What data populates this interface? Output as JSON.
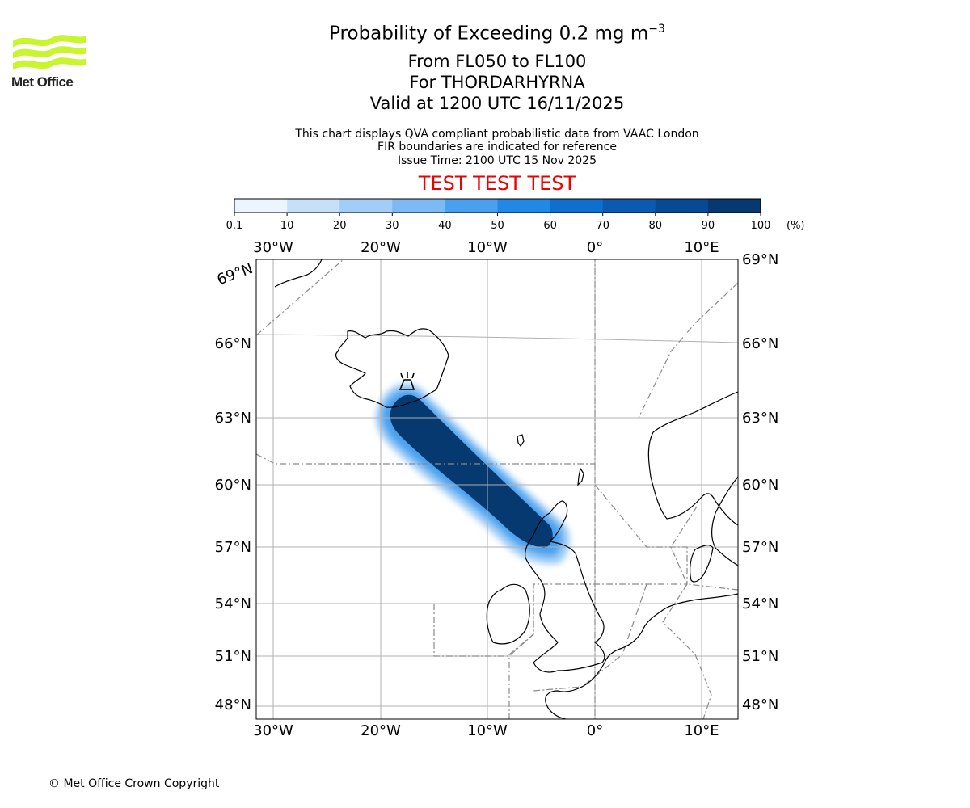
{
  "logo": {
    "text": "Met Office",
    "accent_color": "#c8f52c"
  },
  "header": {
    "title_prefix": "Probability of Exceeding 0.2 mg m",
    "title_exponent": "−3",
    "levels": "From FL050 to FL100",
    "volcano": "For THORDARHYRNA",
    "valid": "Valid at 1200 UTC 16/11/2025",
    "info_line1": "This chart displays QVA compliant probabilistic data from VAAC London",
    "info_line2": "FIR boundaries are indicated for reference",
    "issue_time": "Issue Time: 2100 UTC 15 Nov 2025",
    "test_banner": "TEST TEST TEST"
  },
  "colorbar": {
    "ticks": [
      "0.1",
      "10",
      "20",
      "30",
      "40",
      "50",
      "60",
      "70",
      "80",
      "90",
      "100"
    ],
    "unit": "(%)",
    "colors": [
      "#ecf5fe",
      "#c6e0f9",
      "#a2cdf6",
      "#7dbaf3",
      "#4aa0ee",
      "#2188e6",
      "#0f6fd0",
      "#0a5ab2",
      "#074a93",
      "#05396f"
    ]
  },
  "map": {
    "lon_labels": [
      "30°W",
      "20°W",
      "10°W",
      "0°",
      "10°E"
    ],
    "lat_labels": [
      "69°N",
      "66°N",
      "63°N",
      "60°N",
      "57°N",
      "54°N",
      "51°N",
      "48°N"
    ],
    "plume_color": "#05396f"
  },
  "footer": {
    "copyright": "© Met Office Crown Copyright"
  }
}
